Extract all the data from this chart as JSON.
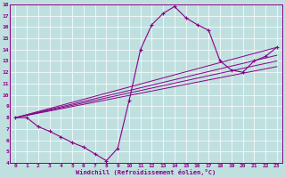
{
  "xlabel": "Windchill (Refroidissement éolien,°C)",
  "bg_color": "#c0e0e0",
  "line_color": "#880088",
  "grid_color": "#ffffff",
  "xlim": [
    -0.5,
    23.5
  ],
  "ylim": [
    4,
    18
  ],
  "xticks": [
    0,
    1,
    2,
    3,
    4,
    5,
    6,
    7,
    8,
    9,
    10,
    11,
    12,
    13,
    14,
    15,
    16,
    17,
    18,
    19,
    20,
    21,
    22,
    23
  ],
  "yticks": [
    4,
    5,
    6,
    7,
    8,
    9,
    10,
    11,
    12,
    13,
    14,
    15,
    16,
    17,
    18
  ],
  "main_x": [
    0,
    1,
    2,
    3,
    4,
    5,
    6,
    7,
    8,
    9,
    10,
    11,
    12,
    13,
    14,
    15,
    16,
    17,
    18,
    19,
    20,
    21,
    22,
    23
  ],
  "main_y": [
    8.0,
    8.0,
    7.2,
    6.8,
    6.3,
    5.8,
    5.4,
    4.8,
    4.2,
    5.3,
    9.5,
    14.0,
    16.2,
    17.2,
    17.8,
    16.8,
    16.2,
    15.7,
    13.0,
    12.2,
    12.0,
    13.0,
    13.4,
    14.2
  ],
  "linear_lines": [
    {
      "x": [
        0,
        23
      ],
      "y": [
        8.0,
        14.2
      ]
    },
    {
      "x": [
        0,
        23
      ],
      "y": [
        8.0,
        13.5
      ]
    },
    {
      "x": [
        0,
        23
      ],
      "y": [
        8.0,
        13.0
      ]
    },
    {
      "x": [
        0,
        23
      ],
      "y": [
        8.0,
        12.5
      ]
    }
  ]
}
